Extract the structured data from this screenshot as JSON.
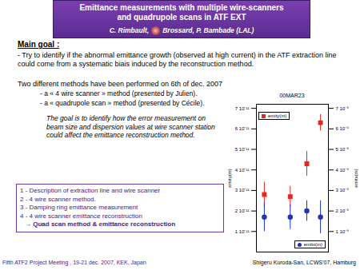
{
  "header": {
    "title_lines": [
      "Emittance measurements with multiple wire-scanners",
      "and quadrupole scans in ATF EXT"
    ],
    "authors": [
      "C. Rimbault,",
      "Brossard, P. Bambade (LAL)"
    ]
  },
  "main_goal": {
    "heading": "Main goal :",
    "text": "- Try to identify if the abnormal emittance growth (observed at high current) in the ATF extraction line could come from a systematic biais induced by the reconstruction method.",
    "methods_intro": "Two different methods have been performed on 6th of dec. 2007",
    "methods": [
      "- a « 4 wire scanner » method (presented by Julien).",
      "- a « quadrupole scan » method (presented by Cécile)."
    ]
  },
  "note": "The goal is to identify how the error measurement on beam size and dispersion values at wire scanner station could affect the emittance reconstruction method.",
  "outline": {
    "items": [
      "1 - Description of extraction line and wire scanner",
      "2 - 4 wire scanner method.",
      "3 - Damping ring emittance measurement",
      "4 - 4 wire scanner emittance reconstruction"
    ],
    "highlight": "→ Quad scan method & emittance reconstruction"
  },
  "footer": "Fifth ATF2 Project Meeting , 19-21 dec. 2007, KEK, Japan",
  "chart_credit": "Shigeru Kuroda-San, LCWS'07, Hamburg",
  "chart_data": {
    "type": "scatter",
    "title": "00MAR23",
    "x": [
      0.11,
      0.47,
      0.7,
      0.89
    ],
    "xlim": [
      0,
      1
    ],
    "tick_labels": "y",
    "y_label": "emity(m)",
    "ylim": [
      0,
      7.2e-11
    ],
    "yticks": [
      {
        "value": 1e-11,
        "label": "1 10⁻¹¹"
      },
      {
        "value": 2e-11,
        "label": "2 10⁻¹¹"
      },
      {
        "value": 3e-11,
        "label": "3 10⁻¹¹"
      },
      {
        "value": 4e-11,
        "label": "4 10⁻¹¹"
      },
      {
        "value": 5e-11,
        "label": "5 10⁻¹¹"
      },
      {
        "value": 6e-11,
        "label": "6 10⁻¹¹"
      },
      {
        "value": 7e-11,
        "label": "7 10⁻¹¹"
      }
    ],
    "y2_label": "emitx(m)",
    "y2lim": [
      0,
      7.2e-09
    ],
    "y2ticks": [
      {
        "value": 1e-09,
        "label": "1 10⁻⁹"
      },
      {
        "value": 2e-09,
        "label": "2 10⁻⁹"
      },
      {
        "value": 3e-09,
        "label": "3 10⁻⁹"
      },
      {
        "value": 4e-09,
        "label": "4 10⁻⁹"
      },
      {
        "value": 5e-09,
        "label": "5 10⁻⁹"
      },
      {
        "value": 6e-09,
        "label": "6 10⁻⁹"
      },
      {
        "value": 7e-09,
        "label": "7 10⁻⁹"
      }
    ],
    "series": [
      {
        "name": "emity(m)",
        "color": "#e8261e",
        "marker": "square",
        "legend": "top-left",
        "values": [
          2.8e-11,
          2.7e-11,
          4.3e-11,
          6.3e-11
        ],
        "errors": [
          6e-12,
          5e-12,
          6e-12,
          4e-12
        ]
      },
      {
        "name": "emitx(m)",
        "color": "#2233bb",
        "marker": "circle",
        "axis": "y2",
        "legend": "bottom-right",
        "values": [
          1.7e-09,
          1.7e-09,
          2e-09,
          1.7e-09
        ],
        "errors": [
          7e-10,
          6e-10,
          5e-10,
          8e-10
        ]
      }
    ]
  }
}
